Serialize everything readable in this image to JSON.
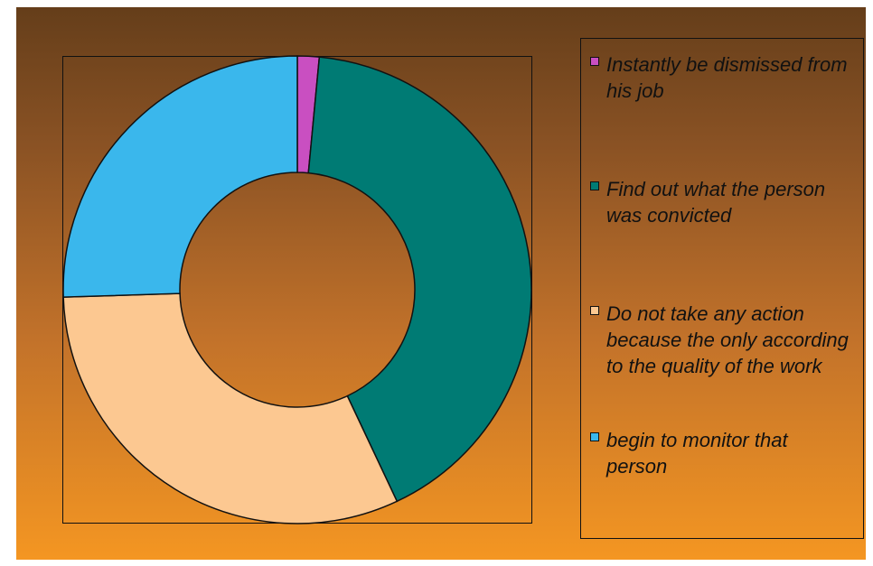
{
  "chart_data": {
    "type": "pie",
    "variant": "donut",
    "categories": [
      "Instantly be dismissed from his job",
      "Find out what the person was convicted",
      "Do not take any action because the only according to the quality of the work",
      "begin to monitor that person"
    ],
    "values": [
      1.5,
      41.5,
      31.5,
      25.5
    ],
    "colors": [
      "#c94fc1",
      "#007b74",
      "#fcc891",
      "#3ab7ec"
    ],
    "legend_position": "right",
    "title": ""
  }
}
